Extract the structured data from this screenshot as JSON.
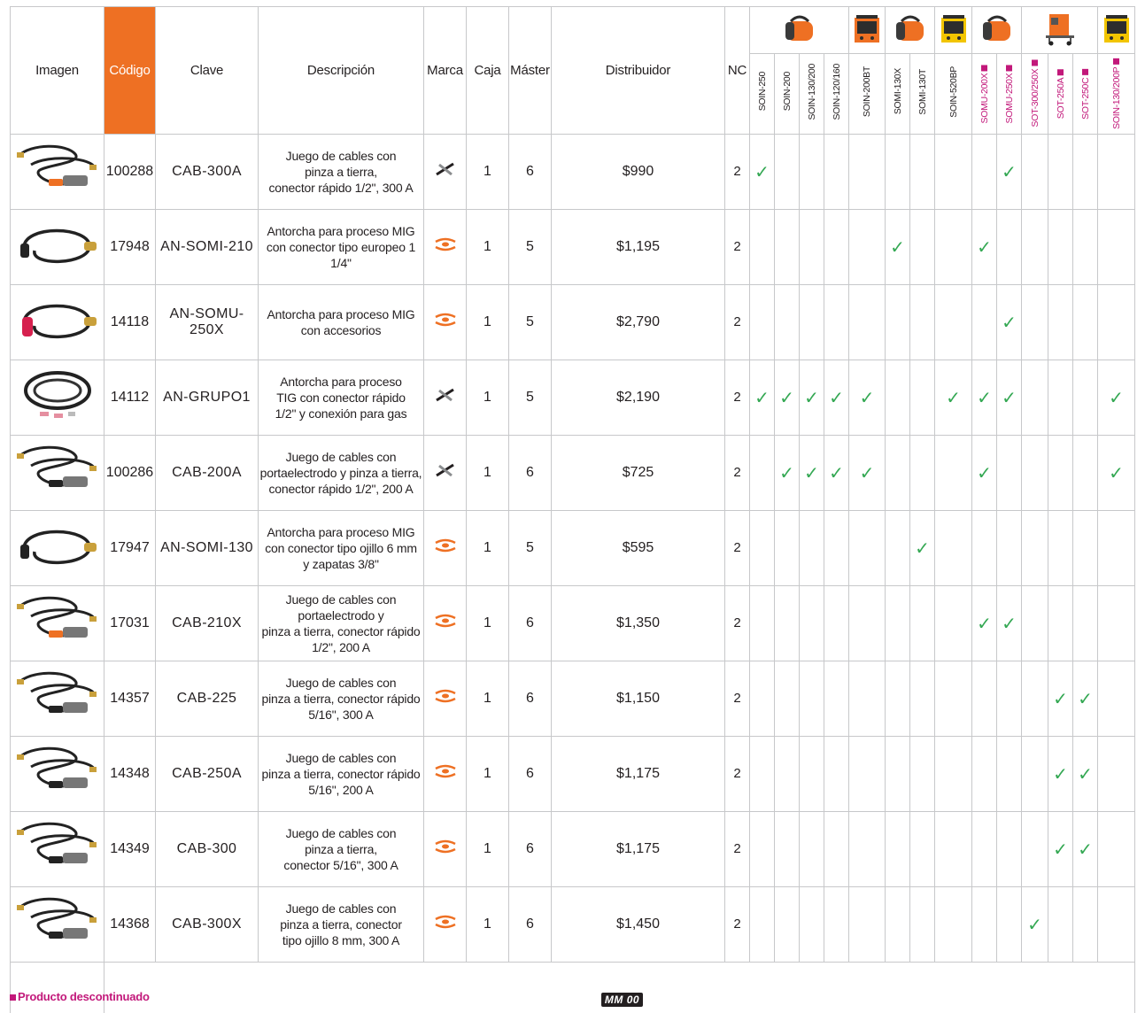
{
  "headers": {
    "imagen": "Imagen",
    "codigo": "Código",
    "clave": "Clave",
    "descripcion": "Descripción",
    "marca": "Marca",
    "caja": "Caja",
    "master": "Máster",
    "distribuidor": "Distribuidor",
    "nc": "NC"
  },
  "models": [
    {
      "name": "SOIN-250",
      "discontinued": false
    },
    {
      "name": "SOIN-200",
      "discontinued": false
    },
    {
      "name": "SOIN-130/200",
      "discontinued": false
    },
    {
      "name": "SOIN-120/160",
      "discontinued": false
    },
    {
      "name": "SOIN-200BT",
      "discontinued": false
    },
    {
      "name": "SOMI-130X",
      "discontinued": false
    },
    {
      "name": "SOMI-130T",
      "discontinued": false
    },
    {
      "name": "SOIN-520BP",
      "discontinued": false
    },
    {
      "name": "SOMU-200X",
      "discontinued": true
    },
    {
      "name": "SOMU-250X",
      "discontinued": true
    },
    {
      "name": "SOT-300/250X",
      "discontinued": true
    },
    {
      "name": "SOT-250A",
      "discontinued": true
    },
    {
      "name": "SOT-250C",
      "discontinued": true
    },
    {
      "name": "SOIN-130/200P",
      "discontinued": true
    }
  ],
  "products": [
    {
      "codigo": "100288",
      "clave": "CAB-300A",
      "desc": [
        "Juego de cables con",
        "pinza a tierra,",
        "conector rápido 1/2\", 300 A"
      ],
      "marca": "pretul",
      "caja": "1",
      "master": "6",
      "precio": "$990",
      "nc": "2",
      "compat": [
        0,
        9
      ]
    },
    {
      "codigo": "17948",
      "clave": "AN-SOMI-210",
      "desc": [
        "Antorcha para proceso MIG",
        "con conector tipo europeo 1 1/4\""
      ],
      "marca": "truper",
      "caja": "1",
      "master": "5",
      "precio": "$1,195",
      "nc": "2",
      "compat": [
        5,
        8
      ]
    },
    {
      "codigo": "14118",
      "clave": "AN-SOMU-250X",
      "desc": [
        "Antorcha para proceso MIG",
        "con accesorios"
      ],
      "marca": "truper",
      "caja": "1",
      "master": "5",
      "precio": "$2,790",
      "nc": "2",
      "compat": [
        9
      ]
    },
    {
      "codigo": "14112",
      "clave": "AN-GRUPO1",
      "desc": [
        "Antorcha para proceso",
        "TIG con conector rápido",
        "1/2\" y conexión para gas"
      ],
      "marca": "pretul",
      "caja": "1",
      "master": "5",
      "precio": "$2,190",
      "nc": "2",
      "compat": [
        0,
        1,
        2,
        3,
        4,
        7,
        8,
        9,
        13
      ]
    },
    {
      "codigo": "100286",
      "clave": "CAB-200A",
      "desc": [
        "Juego de cables con",
        "portaelectrodo y pinza a tierra,",
        "conector rápido 1/2\", 200 A"
      ],
      "marca": "pretul",
      "caja": "1",
      "master": "6",
      "precio": "$725",
      "nc": "2",
      "compat": [
        1,
        2,
        3,
        4,
        8,
        13
      ]
    },
    {
      "codigo": "17947",
      "clave": "AN-SOMI-130",
      "desc": [
        "Antorcha para proceso MIG",
        "con conector tipo ojillo 6 mm",
        "y zapatas 3/8\""
      ],
      "marca": "truper",
      "caja": "1",
      "master": "5",
      "precio": "$595",
      "nc": "2",
      "compat": [
        6
      ]
    },
    {
      "codigo": "17031",
      "clave": "CAB-210X",
      "desc": [
        "Juego de cables con",
        "portaelectrodo y",
        "pinza a tierra, conector rápido",
        "1/2\", 200 A"
      ],
      "marca": "truper",
      "caja": "1",
      "master": "6",
      "precio": "$1,350",
      "nc": "2",
      "compat": [
        8,
        9
      ]
    },
    {
      "codigo": "14357",
      "clave": "CAB-225",
      "desc": [
        "Juego de cables con",
        "pinza a tierra, conector rápido",
        "5/16\", 300 A"
      ],
      "marca": "truper",
      "caja": "1",
      "master": "6",
      "precio": "$1,150",
      "nc": "2",
      "compat": [
        11,
        12
      ]
    },
    {
      "codigo": "14348",
      "clave": "CAB-250A",
      "desc": [
        "Juego de cables con",
        "pinza a tierra, conector rápido",
        "5/16\", 200 A"
      ],
      "marca": "truper",
      "caja": "1",
      "master": "6",
      "precio": "$1,175",
      "nc": "2",
      "compat": [
        11,
        12
      ]
    },
    {
      "codigo": "14349",
      "clave": "CAB-300",
      "desc": [
        "Juego de cables con",
        "pinza a tierra,",
        "conector 5/16\", 300 A"
      ],
      "marca": "truper",
      "caja": "1",
      "master": "6",
      "precio": "$1,175",
      "nc": "2",
      "compat": [
        11,
        12
      ]
    },
    {
      "codigo": "14368",
      "clave": "CAB-300X",
      "desc": [
        "Juego de cables con",
        "pinza a tierra, conector",
        "tipo ojillo 8 mm, 300 A"
      ],
      "marca": "truper",
      "caja": "1",
      "master": "6",
      "precio": "$1,450",
      "nc": "2",
      "compat": [
        10
      ]
    }
  ],
  "footer_badge": "MM 00",
  "footnote": "Producto descontinuado",
  "check_mark": "✓",
  "colors": {
    "accent": "#ee7023",
    "discontinued": "#c2187a",
    "check": "#34a853"
  },
  "icons": {
    "product_image": "welding-cable-set-icon",
    "machine_image": "welder-machine-icon",
    "brand_pretul": "pretul-logo-icon",
    "brand_truper": "truper-logo-icon"
  }
}
